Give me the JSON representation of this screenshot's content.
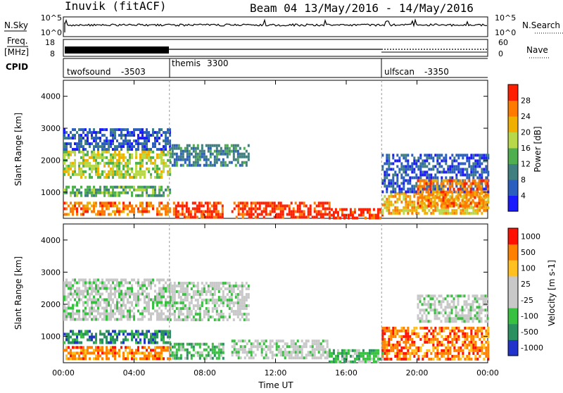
{
  "header": {
    "station": "Inuvik (fitACF)",
    "title": "Beam 04 13/May/2016 - 14/May/2016"
  },
  "colors": {
    "sky_trace": "#000000",
    "background": "#ffffff",
    "cpid_rule": "#000000"
  },
  "top_panels": {
    "nsky_label": "N.Sky",
    "nsearch_label": "N.Search",
    "nsky_ticks": [
      "10^5",
      "10^0"
    ],
    "nsearch_ticks": [
      "10^5",
      "10^0"
    ],
    "freq_label_1": "Freq.",
    "freq_label_2": "[MHz]",
    "freq_ticks": [
      "18",
      "8"
    ],
    "nave_label": "Nave",
    "nave_ticks": [
      "60",
      "0"
    ],
    "cpid_label": "CPID"
  },
  "cpid": [
    {
      "name": "twofsound",
      "id": "-3503",
      "start_hour": 0
    },
    {
      "name": "themis",
      "id": "3300",
      "start_hour": 6
    },
    {
      "name": "ulfscan",
      "id": "-3350",
      "start_hour": 18
    }
  ],
  "chart_data": [
    {
      "type": "heatmap",
      "title": "",
      "xlabel": "Time UT",
      "ylabel": "Slant Range [km]",
      "xlim": [
        0,
        24
      ],
      "ylim": [
        180,
        4500
      ],
      "x_ticks": [
        "00:00",
        "04:00",
        "08:00",
        "12:00",
        "16:00",
        "20:00",
        "00:00"
      ],
      "x_tick_hours": [
        0,
        4,
        8,
        12,
        16,
        20,
        24
      ],
      "y_ticks": [
        1000,
        2000,
        3000,
        4000
      ],
      "colorbar": {
        "label": "Power [dB]",
        "ticks": [
          "4",
          "8",
          "12",
          "16",
          "20",
          "24",
          "28"
        ],
        "colors": [
          "#1a1aff",
          "#2a5fbf",
          "#3f7f7f",
          "#4faf4f",
          "#b8d84a",
          "#f0b000",
          "#ff7a00",
          "#ff1e00"
        ]
      },
      "regions": [
        {
          "t": [
            0.0,
            6.0
          ],
          "r": [
            300,
            700
          ],
          "level": 6
        },
        {
          "t": [
            0.0,
            6.0
          ],
          "r": [
            1500,
            2300
          ],
          "level": 4
        },
        {
          "t": [
            0.0,
            6.0
          ],
          "r": [
            900,
            1200
          ],
          "level": 3
        },
        {
          "t": [
            0.0,
            6.0
          ],
          "r": [
            2300,
            3000
          ],
          "level": 1
        },
        {
          "t": [
            6.0,
            10.5
          ],
          "r": [
            1800,
            2500
          ],
          "level": 2
        },
        {
          "t": [
            6.2,
            9.0
          ],
          "r": [
            200,
            700
          ],
          "level": 7
        },
        {
          "t": [
            9.5,
            15.0
          ],
          "r": [
            200,
            700
          ],
          "level": 7
        },
        {
          "t": [
            15.0,
            18.0
          ],
          "r": [
            200,
            500
          ],
          "level": 7
        },
        {
          "t": [
            18.0,
            24.0
          ],
          "r": [
            300,
            1000
          ],
          "level": 5
        },
        {
          "t": [
            18.0,
            24.0
          ],
          "r": [
            1000,
            2200
          ],
          "level": 1
        },
        {
          "t": [
            20.0,
            24.0
          ],
          "r": [
            600,
            1400
          ],
          "level": 6
        }
      ]
    },
    {
      "type": "heatmap",
      "title": "",
      "xlabel": "Time UT",
      "ylabel": "Slant Range [km]",
      "xlim": [
        0,
        24
      ],
      "ylim": [
        180,
        4500
      ],
      "x_ticks": [
        "00:00",
        "04:00",
        "08:00",
        "12:00",
        "16:00",
        "20:00",
        "00:00"
      ],
      "x_tick_hours": [
        0,
        4,
        8,
        12,
        16,
        20,
        24
      ],
      "y_ticks": [
        1000,
        2000,
        3000,
        4000
      ],
      "colorbar": {
        "label": "Velocity [m s-1]",
        "ticks": [
          "1000",
          "500",
          "100",
          "25",
          "-25",
          "-100",
          "-500",
          "-1000"
        ],
        "colors": [
          "#2233cc",
          "#2a9060",
          "#38c040",
          "#c8c8c8",
          "#c8c8c8",
          "#ffc020",
          "#ff8000",
          "#ff1000"
        ]
      },
      "regions": [
        {
          "t": [
            0.0,
            6.0
          ],
          "r": [
            300,
            700
          ],
          "level": 6
        },
        {
          "t": [
            0.0,
            6.0
          ],
          "r": [
            1500,
            2800
          ],
          "level": 3
        },
        {
          "t": [
            0.0,
            6.0
          ],
          "r": [
            800,
            1200
          ],
          "level": 1
        },
        {
          "t": [
            6.0,
            10.5
          ],
          "r": [
            1500,
            2700
          ],
          "level": 3
        },
        {
          "t": [
            6.0,
            9.0
          ],
          "r": [
            300,
            800
          ],
          "level": 2
        },
        {
          "t": [
            9.5,
            15.0
          ],
          "r": [
            300,
            900
          ],
          "level": 3
        },
        {
          "t": [
            15.0,
            18.0
          ],
          "r": [
            200,
            600
          ],
          "level": 2
        },
        {
          "t": [
            18.0,
            24.0
          ],
          "r": [
            300,
            1300
          ],
          "level": 6
        },
        {
          "t": [
            20.0,
            24.0
          ],
          "r": [
            1500,
            2300
          ],
          "level": 3
        }
      ]
    }
  ]
}
